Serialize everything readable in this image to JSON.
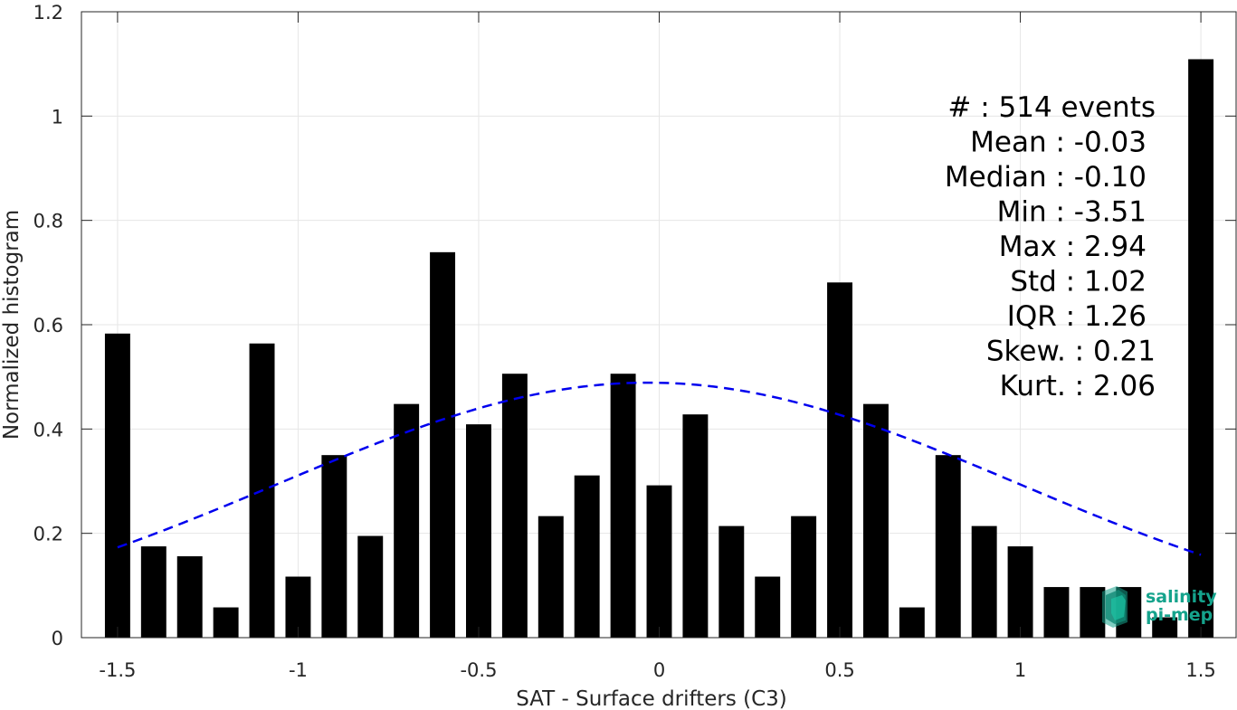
{
  "chart_data": {
    "type": "bar",
    "title": "",
    "xlabel": "SAT - Surface drifters (C3)",
    "ylabel": "Normalized histogram",
    "xlim": [
      -1.6,
      1.6
    ],
    "ylim": [
      0,
      1.2
    ],
    "xticks": [
      -1.5,
      -1,
      -0.5,
      0,
      0.5,
      1,
      1.5
    ],
    "xtick_labels": [
      "-1.5",
      "-1",
      "-0.5",
      "0",
      "0.5",
      "1",
      "1.5"
    ],
    "yticks": [
      0,
      0.2,
      0.4,
      0.6,
      0.8,
      1,
      1.2
    ],
    "ytick_labels": [
      "0",
      "0.2",
      "0.4",
      "0.6",
      "0.8",
      "1",
      "1.2"
    ],
    "grid": true,
    "bar_color": "#000000",
    "bar_width": 0.07,
    "x": [
      -1.5,
      -1.4,
      -1.3,
      -1.2,
      -1.1,
      -1.0,
      -0.9,
      -0.8,
      -0.7,
      -0.6,
      -0.5,
      -0.4,
      -0.3,
      -0.2,
      -0.1,
      0.0,
      0.1,
      0.2,
      0.3,
      0.4,
      0.5,
      0.6,
      0.7,
      0.8,
      0.9,
      1.0,
      1.1,
      1.2,
      1.3,
      1.4,
      1.5
    ],
    "values": [
      0.583,
      0.175,
      0.156,
      0.058,
      0.564,
      0.117,
      0.35,
      0.195,
      0.448,
      0.739,
      0.409,
      0.506,
      0.233,
      0.311,
      0.506,
      0.292,
      0.428,
      0.214,
      0.117,
      0.233,
      0.681,
      0.448,
      0.058,
      0.35,
      0.214,
      0.175,
      0.097,
      0.097,
      0.097,
      0.039,
      1.109
    ],
    "fit_curve": {
      "type": "normal",
      "mean": -0.03,
      "std": 1.02,
      "range": [
        -1.5,
        1.5
      ],
      "color": "#0000ee",
      "style": "dashed"
    },
    "annotations": [
      "#  : 514 events",
      "Mean : -0.03",
      "Median : -0.10",
      "Min : -3.51",
      "Max : 2.94",
      "Std : 1.02",
      "IQR : 1.26",
      "Skew. : 0.21",
      "Kurt. : 2.06"
    ]
  },
  "logo": {
    "line1": "salinity",
    "line2": "pi-mep",
    "color": "#15a38c"
  }
}
